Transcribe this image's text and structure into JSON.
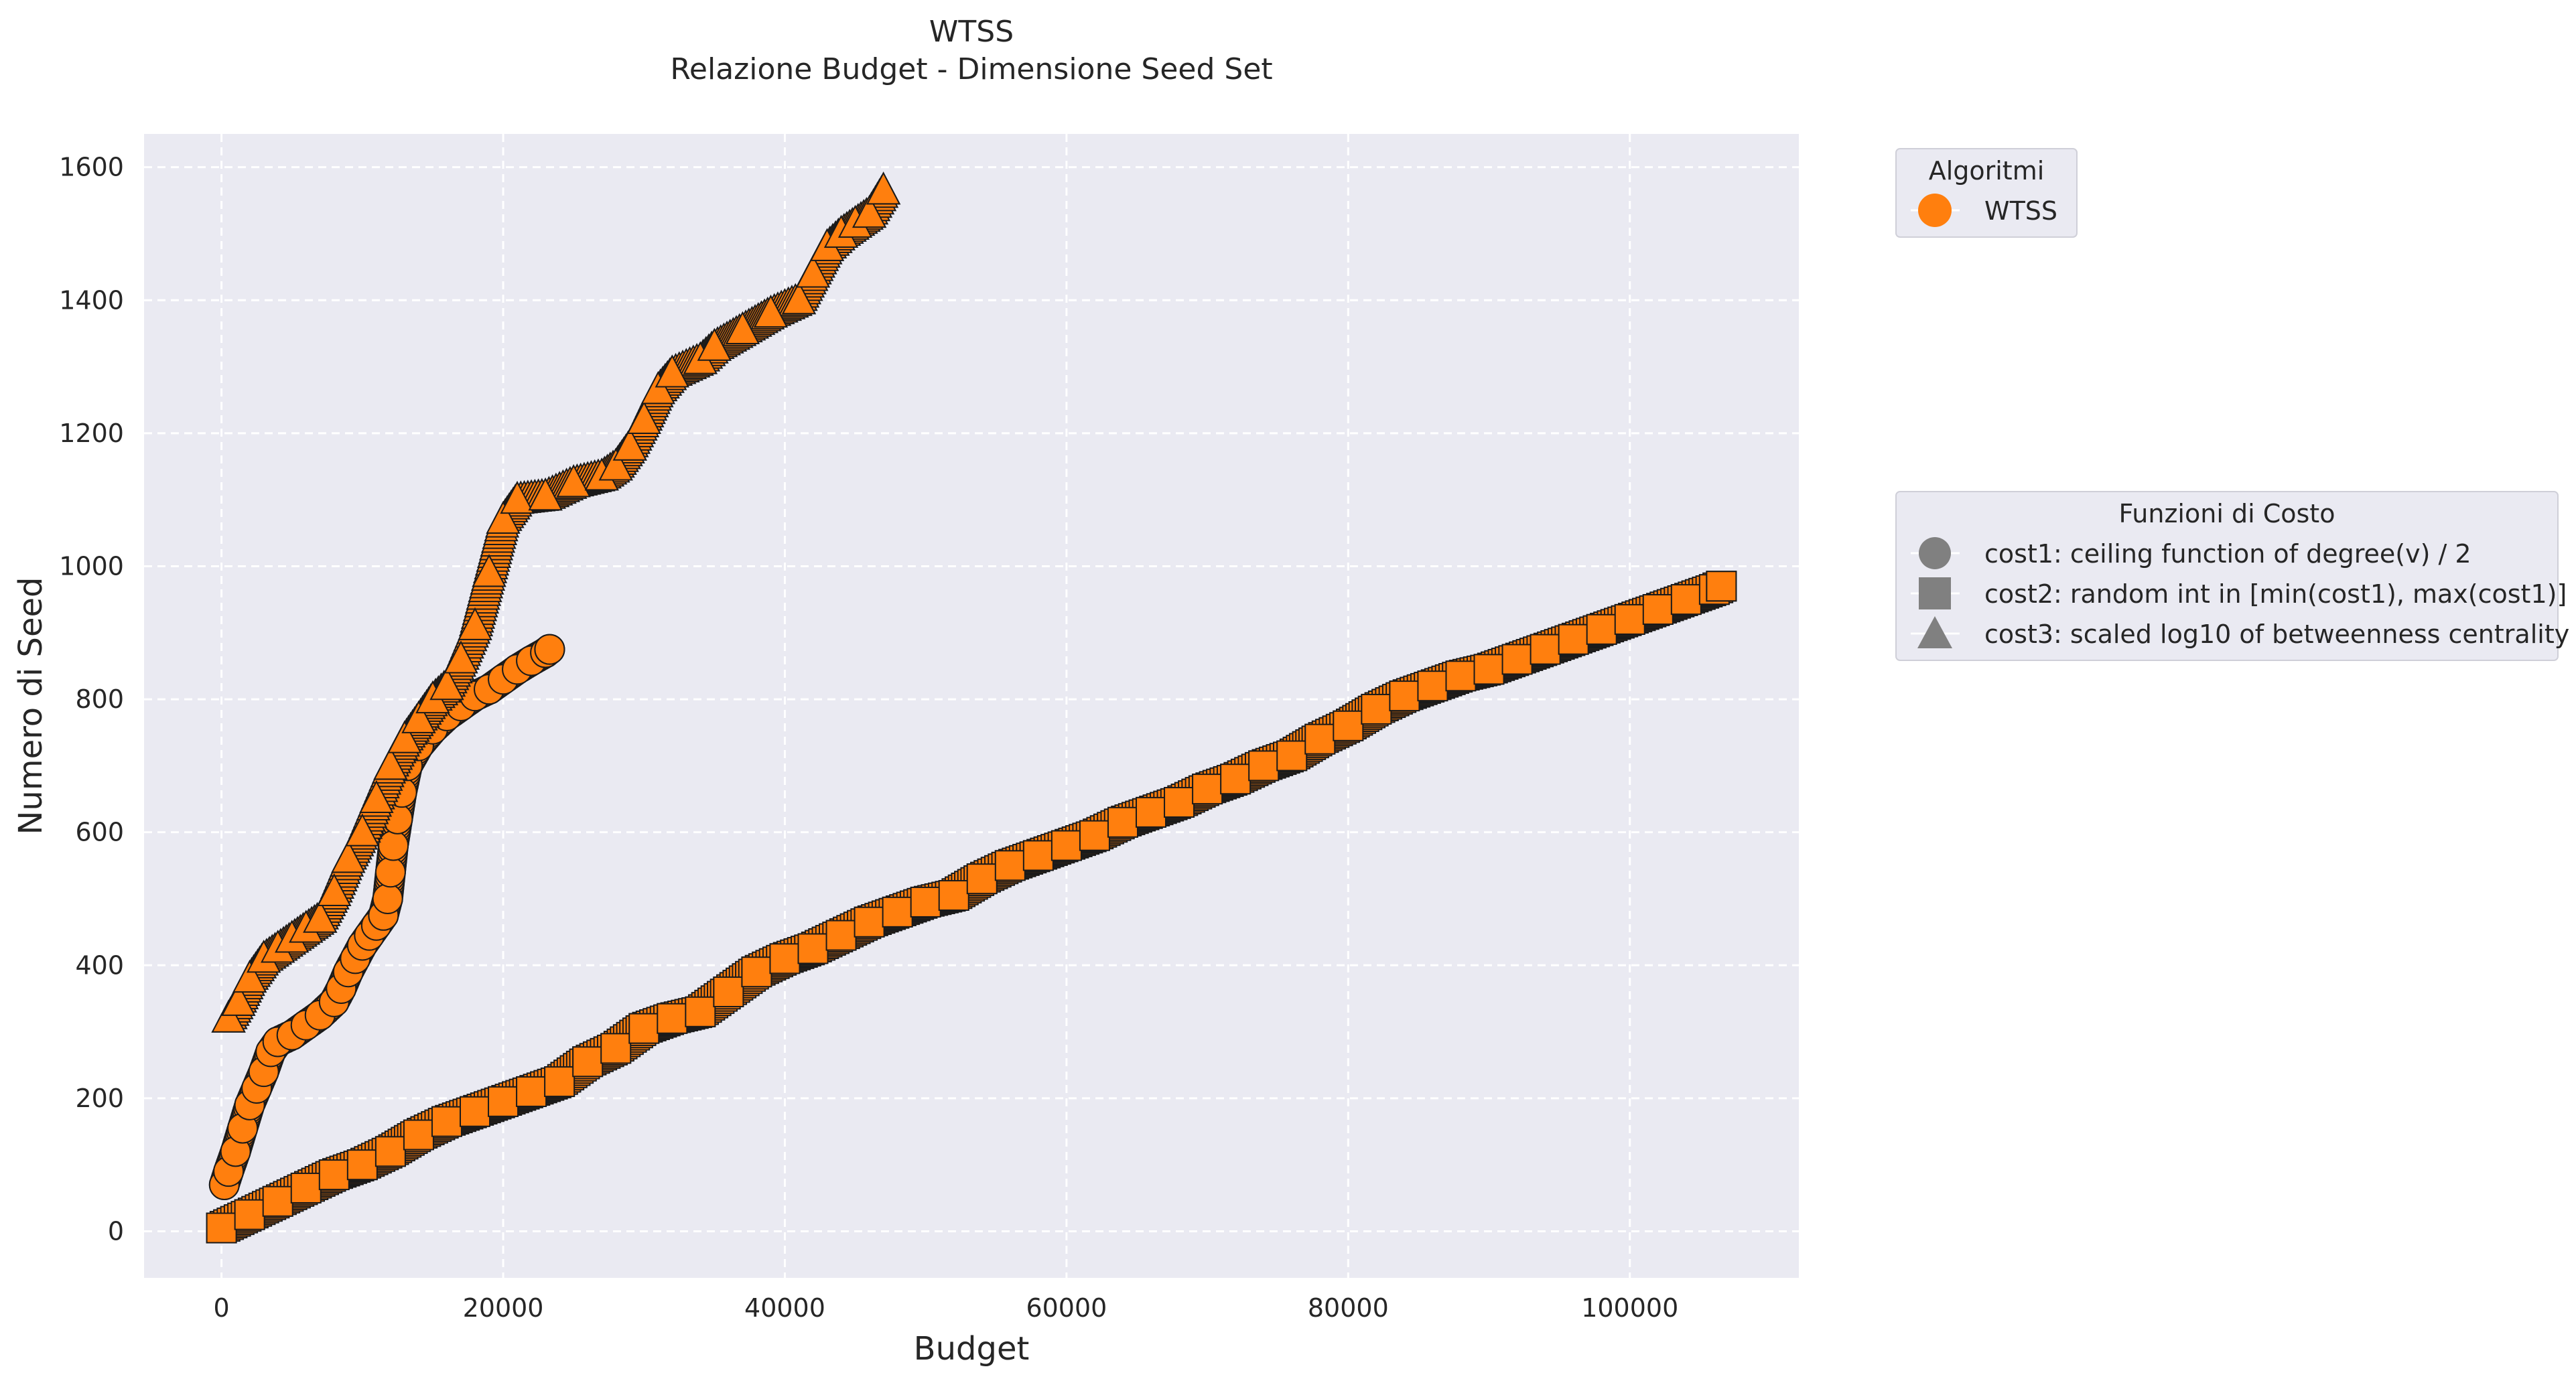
{
  "chart_data": {
    "type": "scatter",
    "title": "WTSS",
    "subtitle": "Relazione Budget - Dimensione Seed Set",
    "xlabel": "Budget",
    "ylabel": "Numero di Seed",
    "xlim": [
      -5500,
      112000
    ],
    "ylim": [
      -70,
      1650
    ],
    "xticks": [
      0,
      20000,
      40000,
      60000,
      80000,
      100000
    ],
    "yticks": [
      0,
      200,
      400,
      600,
      800,
      1000,
      1200,
      1400,
      1600
    ],
    "grid": true,
    "colors": {
      "marker": "#ff7f0e",
      "edge": "#1a1a1a",
      "background": "#eaeaf2",
      "legend_marker": "#808080"
    },
    "legend_algorithms": {
      "title": "Algoritmi",
      "placement": "top-right outside",
      "entries": [
        {
          "label": "WTSS",
          "marker": "circle",
          "color": "#ff7f0e"
        }
      ]
    },
    "legend_costs": {
      "title": "Funzioni di Costo",
      "placement": "right outside",
      "entries": [
        {
          "label": "cost1: ceiling function of degree(v) / 2",
          "marker": "circle"
        },
        {
          "label": "cost2: random int in [min(cost1), max(cost1)]",
          "marker": "square"
        },
        {
          "label": "cost3: scaled log10 of betweenness centrality",
          "marker": "triangle"
        }
      ]
    },
    "series": [
      {
        "marker": "circle",
        "points": [
          [
            200,
            70
          ],
          [
            500,
            90
          ],
          [
            1000,
            120
          ],
          [
            1500,
            155
          ],
          [
            2000,
            190
          ],
          [
            2500,
            215
          ],
          [
            3000,
            240
          ],
          [
            3500,
            270
          ],
          [
            4000,
            285
          ],
          [
            5000,
            295
          ],
          [
            6000,
            310
          ],
          [
            7000,
            325
          ],
          [
            8000,
            345
          ],
          [
            8500,
            365
          ],
          [
            9000,
            390
          ],
          [
            9500,
            410
          ],
          [
            10000,
            430
          ],
          [
            10500,
            445
          ],
          [
            11000,
            460
          ],
          [
            11500,
            475
          ],
          [
            11800,
            500
          ],
          [
            12000,
            540
          ],
          [
            12200,
            580
          ],
          [
            12500,
            620
          ],
          [
            12800,
            660
          ],
          [
            13200,
            700
          ],
          [
            14000,
            730
          ],
          [
            15000,
            755
          ],
          [
            16000,
            775
          ],
          [
            17000,
            790
          ],
          [
            18000,
            805
          ],
          [
            19000,
            815
          ],
          [
            20000,
            830
          ],
          [
            21000,
            845
          ],
          [
            22000,
            858
          ],
          [
            23000,
            870
          ],
          [
            23300,
            875
          ]
        ]
      },
      {
        "marker": "square",
        "points": [
          [
            0,
            5
          ],
          [
            2000,
            25
          ],
          [
            4000,
            45
          ],
          [
            6000,
            65
          ],
          [
            8000,
            85
          ],
          [
            10000,
            100
          ],
          [
            12000,
            120
          ],
          [
            14000,
            145
          ],
          [
            16000,
            165
          ],
          [
            18000,
            180
          ],
          [
            20000,
            195
          ],
          [
            22000,
            210
          ],
          [
            24000,
            225
          ],
          [
            26000,
            255
          ],
          [
            28000,
            275
          ],
          [
            30000,
            305
          ],
          [
            32000,
            320
          ],
          [
            34000,
            330
          ],
          [
            36000,
            360
          ],
          [
            38000,
            390
          ],
          [
            40000,
            410
          ],
          [
            42000,
            425
          ],
          [
            44000,
            445
          ],
          [
            46000,
            465
          ],
          [
            48000,
            480
          ],
          [
            50000,
            495
          ],
          [
            52000,
            505
          ],
          [
            54000,
            530
          ],
          [
            56000,
            550
          ],
          [
            58000,
            565
          ],
          [
            60000,
            580
          ],
          [
            62000,
            595
          ],
          [
            64000,
            615
          ],
          [
            66000,
            630
          ],
          [
            68000,
            645
          ],
          [
            70000,
            665
          ],
          [
            72000,
            680
          ],
          [
            74000,
            700
          ],
          [
            76000,
            715
          ],
          [
            78000,
            740
          ],
          [
            80000,
            760
          ],
          [
            82000,
            785
          ],
          [
            84000,
            805
          ],
          [
            86000,
            820
          ],
          [
            88000,
            835
          ],
          [
            90000,
            845
          ],
          [
            92000,
            860
          ],
          [
            94000,
            875
          ],
          [
            96000,
            890
          ],
          [
            98000,
            905
          ],
          [
            100000,
            920
          ],
          [
            102000,
            935
          ],
          [
            104000,
            950
          ],
          [
            106000,
            965
          ],
          [
            106500,
            970
          ]
        ]
      },
      {
        "marker": "triangle",
        "points": [
          [
            500,
            320
          ],
          [
            1200,
            345
          ],
          [
            2000,
            380
          ],
          [
            3000,
            410
          ],
          [
            4000,
            425
          ],
          [
            5000,
            440
          ],
          [
            6000,
            455
          ],
          [
            7000,
            470
          ],
          [
            8000,
            510
          ],
          [
            9000,
            560
          ],
          [
            10000,
            600
          ],
          [
            11000,
            650
          ],
          [
            12000,
            700
          ],
          [
            13000,
            740
          ],
          [
            14000,
            770
          ],
          [
            15000,
            800
          ],
          [
            16000,
            820
          ],
          [
            17000,
            860
          ],
          [
            18000,
            910
          ],
          [
            19000,
            990
          ],
          [
            20000,
            1070
          ],
          [
            21000,
            1100
          ],
          [
            23000,
            1105
          ],
          [
            25000,
            1125
          ],
          [
            27000,
            1135
          ],
          [
            28000,
            1150
          ],
          [
            29000,
            1180
          ],
          [
            30000,
            1220
          ],
          [
            31000,
            1265
          ],
          [
            32000,
            1290
          ],
          [
            34000,
            1310
          ],
          [
            35000,
            1330
          ],
          [
            37000,
            1355
          ],
          [
            39000,
            1380
          ],
          [
            41000,
            1400
          ],
          [
            42000,
            1440
          ],
          [
            43000,
            1480
          ],
          [
            44000,
            1500
          ],
          [
            45000,
            1515
          ],
          [
            46000,
            1530
          ],
          [
            47000,
            1565
          ]
        ]
      }
    ]
  }
}
